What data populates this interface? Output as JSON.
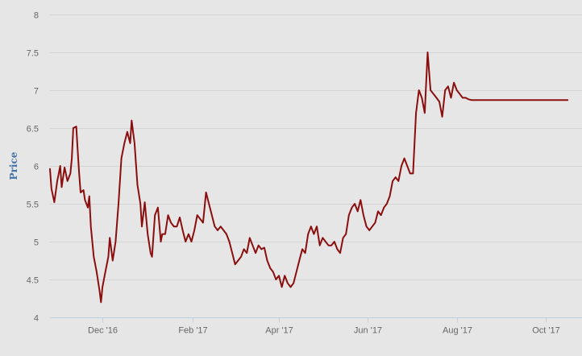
{
  "chart_data": {
    "type": "line",
    "title": "",
    "xlabel": "",
    "ylabel": "Price",
    "ylim": [
      4,
      8
    ],
    "y_ticks": [
      "4",
      "4.5",
      "5",
      "5.5",
      "6",
      "6.5",
      "7",
      "7.5",
      "8"
    ],
    "x_ticks": [
      {
        "label": "Dec '16",
        "date": "2016-12-01"
      },
      {
        "label": "Feb '17",
        "date": "2017-02-01"
      },
      {
        "label": "Apr '17",
        "date": "2017-04-01"
      },
      {
        "label": "Jun '17",
        "date": "2017-06-01"
      },
      {
        "label": "Aug '17",
        "date": "2017-08-01"
      },
      {
        "label": "Oct '17",
        "date": "2017-10-01"
      }
    ],
    "x_range": [
      "2016-10-26",
      "2017-10-17"
    ],
    "grid": true,
    "line_color": "#8b0e0e",
    "series": [
      {
        "x": [
          "2016-10-26",
          "2016-10-27",
          "2016-10-29",
          "2016-10-31",
          "2016-11-01",
          "2016-11-02",
          "2016-11-03",
          "2016-11-05",
          "2016-11-07",
          "2016-11-09",
          "2016-11-10",
          "2016-11-11",
          "2016-11-13",
          "2016-11-14",
          "2016-11-15",
          "2016-11-16",
          "2016-11-18",
          "2016-11-19",
          "2016-11-21",
          "2016-11-22",
          "2016-11-23",
          "2016-11-25",
          "2016-11-27",
          "2016-11-29",
          "2016-11-30",
          "2016-12-01",
          "2016-12-03",
          "2016-12-05",
          "2016-12-06",
          "2016-12-08",
          "2016-12-10",
          "2016-12-12",
          "2016-12-14",
          "2016-12-16",
          "2016-12-18",
          "2016-12-20",
          "2016-12-21",
          "2016-12-23",
          "2016-12-25",
          "2016-12-27",
          "2016-12-28",
          "2016-12-30",
          "2017-01-01",
          "2017-01-03",
          "2017-01-04",
          "2017-01-06",
          "2017-01-08",
          "2017-01-10",
          "2017-01-11",
          "2017-01-13",
          "2017-01-15",
          "2017-01-17",
          "2017-01-19",
          "2017-01-21",
          "2017-01-23",
          "2017-01-25",
          "2017-01-27",
          "2017-01-29",
          "2017-01-31",
          "2017-02-02",
          "2017-02-04",
          "2017-02-06",
          "2017-02-08",
          "2017-02-10",
          "2017-02-12",
          "2017-02-14",
          "2017-02-16",
          "2017-02-18",
          "2017-02-20",
          "2017-02-22",
          "2017-02-24",
          "2017-02-26",
          "2017-02-28",
          "2017-03-02",
          "2017-03-04",
          "2017-03-06",
          "2017-03-08",
          "2017-03-10",
          "2017-03-12",
          "2017-03-14",
          "2017-03-16",
          "2017-03-18",
          "2017-03-20",
          "2017-03-22",
          "2017-03-24",
          "2017-03-26",
          "2017-03-28",
          "2017-03-30",
          "2017-04-01",
          "2017-04-03",
          "2017-04-05",
          "2017-04-07",
          "2017-04-09",
          "2017-04-11",
          "2017-04-13",
          "2017-04-15",
          "2017-04-17",
          "2017-04-19",
          "2017-04-21",
          "2017-04-23",
          "2017-04-25",
          "2017-04-27",
          "2017-04-29",
          "2017-05-01",
          "2017-05-03",
          "2017-05-05",
          "2017-05-07",
          "2017-05-09",
          "2017-05-11",
          "2017-05-13",
          "2017-05-15",
          "2017-05-17",
          "2017-05-19",
          "2017-05-21",
          "2017-05-23",
          "2017-05-25",
          "2017-05-27",
          "2017-05-29",
          "2017-05-31",
          "2017-06-02",
          "2017-06-04",
          "2017-06-06",
          "2017-06-08",
          "2017-06-10",
          "2017-06-12",
          "2017-06-14",
          "2017-06-16",
          "2017-06-18",
          "2017-06-20",
          "2017-06-22",
          "2017-06-24",
          "2017-06-26",
          "2017-06-28",
          "2017-06-30",
          "2017-07-02",
          "2017-07-04",
          "2017-07-06",
          "2017-07-08",
          "2017-07-10",
          "2017-07-12",
          "2017-07-14",
          "2017-07-16",
          "2017-07-18",
          "2017-07-20",
          "2017-07-22",
          "2017-07-24",
          "2017-07-26",
          "2017-07-28",
          "2017-07-30",
          "2017-08-01",
          "2017-08-03",
          "2017-08-05",
          "2017-08-07",
          "2017-08-09",
          "2017-08-11",
          "2017-08-13",
          "2017-08-15",
          "2017-08-17",
          "2017-08-19",
          "2017-08-21",
          "2017-08-23",
          "2017-08-25",
          "2017-08-27",
          "2017-08-29",
          "2017-08-31",
          "2017-09-02",
          "2017-09-04",
          "2017-09-06",
          "2017-09-08",
          "2017-09-10",
          "2017-09-12",
          "2017-09-14",
          "2017-09-16",
          "2017-09-18",
          "2017-09-20",
          "2017-09-22",
          "2017-09-24",
          "2017-09-26",
          "2017-09-28",
          "2017-09-30",
          "2017-10-02",
          "2017-10-04",
          "2017-10-06",
          "2017-10-08",
          "2017-10-10",
          "2017-10-12",
          "2017-10-14",
          "2017-10-16"
        ],
        "values": [
          5.96,
          5.7,
          5.52,
          5.8,
          5.9,
          6.0,
          5.72,
          5.98,
          5.8,
          5.9,
          6.1,
          6.5,
          6.52,
          6.2,
          5.9,
          5.65,
          5.68,
          5.55,
          5.45,
          5.6,
          5.2,
          4.8,
          4.6,
          4.35,
          4.2,
          4.4,
          4.6,
          4.8,
          5.05,
          4.75,
          5.0,
          5.5,
          6.1,
          6.3,
          6.45,
          6.3,
          6.6,
          6.3,
          5.75,
          5.5,
          5.2,
          5.52,
          5.1,
          4.85,
          4.8,
          5.35,
          5.45,
          5.0,
          5.1,
          5.1,
          5.35,
          5.25,
          5.2,
          5.2,
          5.32,
          5.15,
          5.0,
          5.1,
          5.0,
          5.15,
          5.35,
          5.3,
          5.25,
          5.65,
          5.5,
          5.35,
          5.2,
          5.15,
          5.2,
          5.15,
          5.1,
          5.0,
          4.85,
          4.7,
          4.75,
          4.8,
          4.9,
          4.85,
          5.05,
          4.95,
          4.85,
          4.95,
          4.9,
          4.92,
          4.75,
          4.65,
          4.6,
          4.5,
          4.55,
          4.4,
          4.55,
          4.45,
          4.4,
          4.45,
          4.6,
          4.75,
          4.9,
          4.85,
          5.1,
          5.2,
          5.1,
          5.2,
          4.95,
          5.05,
          5.0,
          4.95,
          4.95,
          5.0,
          4.9,
          4.85,
          5.05,
          5.1,
          5.35,
          5.45,
          5.5,
          5.4,
          5.55,
          5.35,
          5.2,
          5.15,
          5.2,
          5.25,
          5.4,
          5.35,
          5.45,
          5.5,
          5.6,
          5.8,
          5.85,
          5.8,
          6.0,
          6.1,
          6.0,
          5.9,
          5.9,
          6.7,
          7.0,
          6.9,
          6.7,
          7.5,
          7.0,
          6.95,
          6.9,
          6.85,
          6.65,
          7.0,
          7.05,
          6.9,
          7.1,
          7.0,
          6.95,
          6.9,
          6.9,
          6.88,
          6.87,
          6.87,
          6.87,
          6.87,
          6.87,
          6.87,
          6.87,
          6.87,
          6.87,
          6.87,
          6.87,
          6.87,
          6.87,
          6.87,
          6.87,
          6.87,
          6.87,
          6.87,
          6.87,
          6.87,
          6.87,
          6.87,
          6.87,
          6.87,
          6.87,
          6.87,
          6.87,
          6.87,
          6.87,
          6.87,
          6.87,
          6.87,
          6.87,
          6.87
        ]
      }
    ]
  }
}
